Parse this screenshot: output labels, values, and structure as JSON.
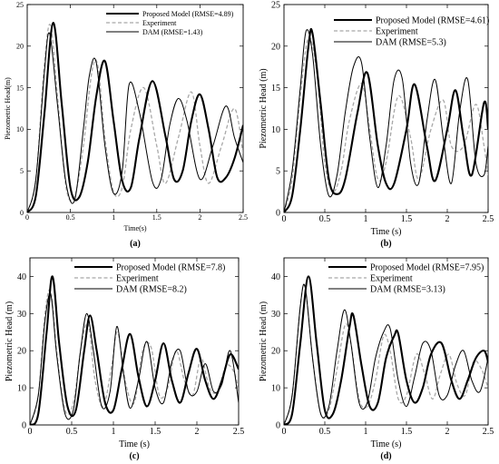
{
  "chart_data": [
    {
      "type": "line",
      "panel_label": "(a)",
      "xlabel": "Time(s)",
      "ylabel": "Piezometric Head(m)",
      "xlim": [
        0,
        2.5
      ],
      "ylim": [
        0,
        25
      ],
      "xticks": [
        "0",
        "0.5",
        "1",
        "1.5",
        "2",
        "2.5"
      ],
      "yticks": [
        "0",
        "5",
        "10",
        "15",
        "20",
        "25"
      ],
      "legend_position": "top-right",
      "series": [
        {
          "name": "Proposed Model (RMSE=4.89)",
          "style": "thick",
          "x": [
            0,
            0.1,
            0.2,
            0.3,
            0.4,
            0.5,
            0.6,
            0.7,
            0.8,
            0.9,
            1.0,
            1.1,
            1.2,
            1.3,
            1.45,
            1.6,
            1.7,
            1.8,
            1.9,
            2.0,
            2.1,
            2.2,
            2.3,
            2.4,
            2.5
          ],
          "y": [
            0,
            2,
            12,
            22.8,
            13,
            3,
            1.8,
            6,
            14,
            18.2,
            11,
            3.8,
            3,
            9,
            15.8,
            9.2,
            4,
            5,
            11,
            14.2,
            10,
            4.2,
            4.2,
            6.5,
            10.5
          ]
        },
        {
          "name": "Experiment",
          "style": "dash",
          "x": [
            0,
            0.1,
            0.2,
            0.27,
            0.35,
            0.45,
            0.55,
            0.65,
            0.75,
            0.82,
            0.9,
            1.0,
            1.1,
            1.2,
            1.35,
            1.5,
            1.6,
            1.75,
            1.9,
            2.0,
            2.1,
            2.25,
            2.4,
            2.5
          ],
          "y": [
            0,
            4,
            18,
            22.5,
            14,
            3,
            2,
            8,
            17,
            17.5,
            9,
            2.5,
            3,
            10,
            15,
            8,
            3.5,
            9,
            14.5,
            8,
            3.5,
            8,
            12.5,
            7
          ]
        },
        {
          "name": "DAM (RMSE=1.43)",
          "style": "thin",
          "x": [
            0,
            0.1,
            0.2,
            0.26,
            0.35,
            0.45,
            0.55,
            0.65,
            0.72,
            0.8,
            0.9,
            1.0,
            1.1,
            1.18,
            1.3,
            1.45,
            1.55,
            1.65,
            1.75,
            1.85,
            2.0,
            2.15,
            2.3,
            2.4,
            2.5
          ],
          "y": [
            0,
            4,
            17,
            21.5,
            13,
            3.5,
            1.5,
            10,
            16.5,
            18,
            8,
            2.3,
            5,
            15.4,
            12,
            3.7,
            4,
            10.5,
            13.7,
            11,
            4,
            8,
            12.8,
            9,
            6
          ]
        }
      ]
    },
    {
      "type": "line",
      "panel_label": "(b)",
      "xlabel": "Time (s)",
      "ylabel": "Piezometric Head (m)",
      "xlim": [
        0,
        2.5
      ],
      "ylim": [
        0,
        25
      ],
      "xticks": [
        "0",
        "0.5",
        "1",
        "1.5",
        "2",
        "2.5"
      ],
      "yticks": [
        "0",
        "5",
        "10",
        "15",
        "20",
        "25"
      ],
      "legend_position": "top-right",
      "series": [
        {
          "name": "Proposed Model (RMSE=4.61)",
          "style": "thick",
          "x": [
            0,
            0.1,
            0.2,
            0.3,
            0.35,
            0.45,
            0.55,
            0.65,
            0.75,
            0.9,
            1.02,
            1.15,
            1.25,
            1.35,
            1.5,
            1.6,
            1.75,
            1.85,
            2.0,
            2.1,
            2.2,
            2.3,
            2.45,
            2.5
          ],
          "y": [
            0,
            2,
            10,
            20,
            21.5,
            13,
            4,
            2.2,
            4,
            12,
            16.8,
            8,
            3.5,
            3.5,
            10,
            15.4,
            8,
            3.8,
            10,
            14.7,
            9,
            4.5,
            13.2,
            10
          ]
        },
        {
          "name": "Experiment",
          "style": "dash",
          "x": [
            0,
            0.1,
            0.2,
            0.3,
            0.4,
            0.5,
            0.6,
            0.7,
            0.8,
            0.95,
            1.05,
            1.15,
            1.25,
            1.4,
            1.55,
            1.65,
            1.8,
            1.95,
            2.05,
            2.2,
            2.35,
            2.45,
            2.5
          ],
          "y": [
            0,
            4,
            14,
            21,
            17,
            6,
            2.5,
            5,
            11,
            15.5,
            10,
            4,
            6,
            14,
            9,
            4,
            10,
            13.5,
            8,
            8,
            13,
            8,
            4.5
          ]
        },
        {
          "name": "DAM (RMSE=5.3)",
          "style": "thin",
          "x": [
            0,
            0.1,
            0.2,
            0.27,
            0.35,
            0.45,
            0.55,
            0.65,
            0.75,
            0.85,
            0.95,
            1.05,
            1.15,
            1.25,
            1.35,
            1.45,
            1.55,
            1.65,
            1.75,
            1.85,
            1.95,
            2.05,
            2.15,
            2.25,
            2.35,
            2.45,
            2.5
          ],
          "y": [
            0,
            5,
            15,
            21.8,
            19,
            8,
            2,
            4.5,
            12,
            17.5,
            18,
            9,
            3,
            8,
            16,
            16,
            6,
            3.5,
            11,
            16,
            9,
            3.5,
            12,
            16,
            6,
            4.5,
            8
          ]
        }
      ]
    },
    {
      "type": "line",
      "panel_label": "(c)",
      "xlabel": "Time (s)",
      "ylabel": "Piezometric Head (m)",
      "xlim": [
        0,
        2.5
      ],
      "ylim": [
        0,
        45
      ],
      "xticks": [
        "0",
        "0.5",
        "1",
        "1.5",
        "2",
        "2.5"
      ],
      "yticks": [
        "0",
        "10",
        "20",
        "30",
        "40"
      ],
      "legend_position": "top-right",
      "series": [
        {
          "name": "Proposed Model (RMSE=7.8)",
          "style": "thick",
          "x": [
            0,
            0.1,
            0.2,
            0.27,
            0.35,
            0.45,
            0.55,
            0.65,
            0.72,
            0.8,
            0.9,
            1.0,
            1.1,
            1.2,
            1.3,
            1.4,
            1.5,
            1.6,
            1.7,
            1.8,
            1.9,
            2.0,
            2.1,
            2.2,
            2.3,
            2.4,
            2.5
          ],
          "y": [
            0,
            3,
            25,
            40,
            22,
            5,
            4,
            20,
            29.5,
            20,
            6,
            4,
            15,
            24.5,
            13,
            5,
            12,
            22,
            12,
            6,
            14,
            20.5,
            12,
            7,
            12,
            19,
            15
          ]
        },
        {
          "name": "Experiment",
          "style": "dash",
          "x": [
            0,
            0.1,
            0.18,
            0.25,
            0.32,
            0.42,
            0.52,
            0.62,
            0.7,
            0.78,
            0.88,
            0.98,
            1.05,
            1.15,
            1.25,
            1.35,
            1.45,
            1.55,
            1.65,
            1.75,
            1.85,
            1.95,
            2.05,
            2.15,
            2.25,
            2.35,
            2.45,
            2.5
          ],
          "y": [
            0,
            8,
            30,
            36,
            20,
            4,
            6,
            22,
            27,
            12,
            5,
            16,
            25,
            11,
            6,
            20,
            21,
            8,
            10,
            20,
            12,
            8,
            18,
            10,
            9,
            16,
            14,
            9
          ]
        },
        {
          "name": "DAM (RMSE=8.2)",
          "style": "thin",
          "x": [
            0,
            0.1,
            0.18,
            0.25,
            0.32,
            0.42,
            0.52,
            0.6,
            0.68,
            0.76,
            0.86,
            0.96,
            1.04,
            1.12,
            1.2,
            1.3,
            1.4,
            1.5,
            1.6,
            1.7,
            1.8,
            1.9,
            2.0,
            2.1,
            2.2,
            2.3,
            2.4,
            2.5
          ],
          "y": [
            0,
            8,
            28,
            35,
            19,
            3,
            4,
            19,
            30,
            20,
            5,
            9,
            26.5,
            14,
            4.5,
            12,
            22.5,
            10,
            6,
            17,
            20,
            9,
            9,
            16.5,
            9,
            11,
            20,
            6
          ]
        }
      ]
    },
    {
      "type": "line",
      "panel_label": "(d)",
      "xlabel": "Time (s)",
      "ylabel": "Piezometric Head (m)",
      "xlim": [
        0,
        2.5
      ],
      "ylim": [
        0,
        45
      ],
      "xticks": [
        "0",
        "0.5",
        "1",
        "1.5",
        "2",
        "2.5"
      ],
      "yticks": [
        "0",
        "10",
        "20",
        "30",
        "40"
      ],
      "legend_position": "top-right",
      "series": [
        {
          "name": "Proposed Model (RMSE=7.95)",
          "style": "thick",
          "x": [
            0,
            0.1,
            0.2,
            0.3,
            0.4,
            0.5,
            0.6,
            0.7,
            0.8,
            0.85,
            0.95,
            1.05,
            1.15,
            1.25,
            1.35,
            1.4,
            1.5,
            1.6,
            1.7,
            1.8,
            1.93,
            2.05,
            2.15,
            2.25,
            2.35,
            2.45,
            2.5
          ],
          "y": [
            0,
            3,
            22,
            40,
            22,
            4,
            3,
            12,
            26,
            29.5,
            16,
            5,
            6,
            18,
            24,
            24.5,
            12,
            6,
            10,
            19,
            22,
            12,
            7,
            12,
            18,
            20,
            17
          ]
        },
        {
          "name": "Experiment",
          "style": "dash",
          "x": [
            0,
            0.1,
            0.2,
            0.26,
            0.35,
            0.45,
            0.55,
            0.65,
            0.75,
            0.82,
            0.92,
            1.02,
            1.12,
            1.22,
            1.3,
            1.4,
            1.5,
            1.62,
            1.72,
            1.82,
            1.92,
            2.02,
            2.12,
            2.22,
            2.32,
            2.42,
            2.5
          ],
          "y": [
            0,
            8,
            32,
            37,
            18,
            3,
            4,
            15,
            27,
            22,
            7,
            5,
            12,
            24,
            20,
            7,
            8,
            19,
            14,
            7,
            14,
            19,
            11,
            8,
            17,
            15,
            10
          ]
        },
        {
          "name": "DAM (RMSE=3.13)",
          "style": "thin",
          "x": [
            0,
            0.1,
            0.2,
            0.26,
            0.35,
            0.45,
            0.55,
            0.65,
            0.74,
            0.82,
            0.92,
            1.02,
            1.12,
            1.22,
            1.3,
            1.4,
            1.5,
            1.6,
            1.7,
            1.8,
            1.9,
            2.0,
            2.1,
            2.2,
            2.3,
            2.4,
            2.5
          ],
          "y": [
            0,
            8,
            32,
            37,
            18,
            3,
            5,
            20,
            31,
            22,
            6,
            6,
            18,
            25,
            26,
            12,
            5,
            13,
            22,
            20,
            8,
            8,
            16,
            20,
            12,
            9,
            18
          ]
        }
      ]
    }
  ]
}
